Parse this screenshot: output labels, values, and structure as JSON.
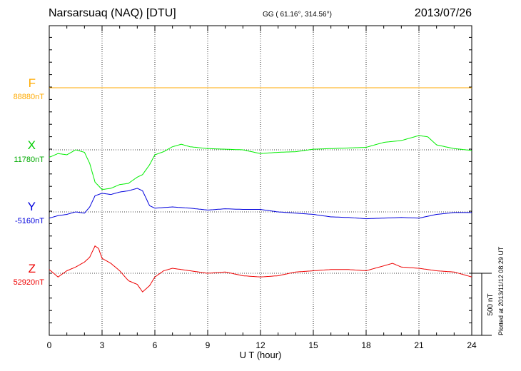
{
  "header": {
    "station": "Narsarsuaq (NAQ)  [DTU]",
    "coords": "GG ( 61.16°, 314.56°)",
    "date": "2013/07/26"
  },
  "plotted_note": "Plotted at 2013/11/12 08:29 UT",
  "colors": {
    "F": "#ffaa00",
    "X": "#00ee00",
    "Y": "#0000dd",
    "Z": "#ee0000"
  },
  "chart_data": {
    "type": "line",
    "xlabel": "U T (hour)",
    "xlim": [
      0,
      24
    ],
    "x_ticks": [
      "0",
      "3",
      "6",
      "9",
      "12",
      "15",
      "18",
      "21",
      "24"
    ],
    "scale_bar_label": "500 nT",
    "scale_bar_nT": 500,
    "grid": true,
    "series": [
      {
        "name": "F",
        "baseline": "88880nT",
        "x": [
          0,
          24
        ],
        "y": [
          0,
          0
        ]
      },
      {
        "name": "X",
        "baseline": "11780nT",
        "x": [
          0,
          0.5,
          1,
          1.5,
          2,
          2.3,
          2.6,
          3,
          3.5,
          4,
          4.5,
          5,
          5.3,
          5.7,
          6,
          6.5,
          7,
          7.5,
          8,
          9,
          10,
          11,
          12,
          13,
          14,
          15,
          16,
          17,
          18,
          19,
          20,
          21,
          21.5,
          22,
          23,
          24
        ],
        "y": [
          -60,
          -30,
          -40,
          0,
          -20,
          -110,
          -260,
          -320,
          -310,
          -280,
          -270,
          -220,
          -200,
          -120,
          -40,
          -15,
          25,
          45,
          25,
          10,
          5,
          0,
          -30,
          -20,
          -15,
          5,
          10,
          15,
          20,
          60,
          75,
          115,
          105,
          40,
          10,
          -5
        ]
      },
      {
        "name": "Y",
        "baseline": "-5160nT",
        "x": [
          0,
          0.5,
          1,
          1.5,
          2,
          2.3,
          2.6,
          3,
          3.5,
          4,
          4.5,
          5,
          5.3,
          5.7,
          6,
          6.5,
          7,
          8,
          9,
          10,
          11,
          12,
          13,
          14,
          15,
          16,
          17,
          18,
          19,
          20,
          21,
          22,
          23,
          24
        ],
        "y": [
          -50,
          -30,
          -20,
          0,
          -10,
          40,
          130,
          150,
          140,
          160,
          170,
          190,
          170,
          50,
          30,
          35,
          40,
          30,
          15,
          25,
          20,
          20,
          0,
          -10,
          -20,
          -40,
          -45,
          -55,
          -50,
          -45,
          -50,
          -20,
          -5,
          -5
        ]
      },
      {
        "name": "Z",
        "baseline": "52920nT",
        "x": [
          0,
          0.5,
          1,
          1.5,
          2,
          2.3,
          2.6,
          2.8,
          3,
          3.5,
          4,
          4.5,
          5,
          5.3,
          5.7,
          6,
          6.5,
          7,
          8,
          9,
          10,
          11,
          12,
          13,
          14,
          15,
          16,
          17,
          18,
          19,
          19.5,
          20,
          21,
          22,
          23,
          24
        ],
        "y": [
          30,
          -30,
          20,
          50,
          90,
          130,
          220,
          200,
          120,
          80,
          20,
          -60,
          -90,
          -150,
          -100,
          -30,
          20,
          40,
          20,
          0,
          10,
          -20,
          -30,
          -20,
          10,
          20,
          30,
          30,
          20,
          60,
          80,
          50,
          40,
          20,
          10,
          -30
        ]
      }
    ]
  }
}
